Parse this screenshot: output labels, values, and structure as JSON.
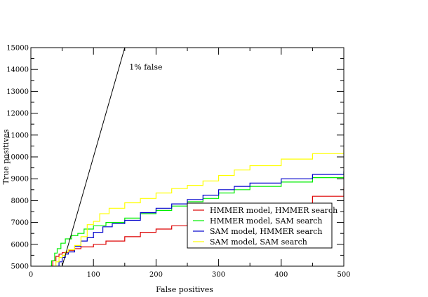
{
  "chart_data": {
    "type": "line",
    "title": "",
    "xlabel": "False positives",
    "ylabel": "True positives",
    "xlim": [
      0,
      500
    ],
    "ylim": [
      5000,
      15000
    ],
    "xticks": [
      0,
      100,
      200,
      300,
      400,
      500
    ],
    "xticks_minor": [
      50,
      150,
      250,
      350,
      450
    ],
    "yticks": [
      5000,
      6000,
      7000,
      8000,
      9000,
      10000,
      11000,
      12000,
      13000,
      14000,
      15000
    ],
    "grid": false,
    "legend_position": "lower-right",
    "annotation": {
      "text": "1% false",
      "x": 155,
      "y": 14050
    },
    "reference_line": {
      "name": "1% false",
      "color": "#000000",
      "x": [
        50,
        150
      ],
      "y": [
        5000,
        15000
      ]
    },
    "series": [
      {
        "name": "HMMER model, HMMER search",
        "color": "#dd0000",
        "x": [
          33,
          35,
          40,
          45,
          50,
          60,
          70,
          80,
          100,
          120,
          150,
          175,
          200,
          225,
          250,
          275,
          300,
          350,
          400,
          450,
          500
        ],
        "y": [
          5000,
          5250,
          5450,
          5550,
          5620,
          5720,
          5800,
          5880,
          6000,
          6150,
          6350,
          6550,
          6700,
          6850,
          7000,
          7150,
          7350,
          7600,
          7850,
          8200,
          8600
        ]
      },
      {
        "name": "HMMER model, SAM search",
        "color": "#00ee00",
        "x": [
          30,
          33,
          38,
          42,
          48,
          55,
          65,
          75,
          85,
          100,
          120,
          150,
          175,
          200,
          225,
          250,
          275,
          300,
          325,
          350,
          400,
          450,
          500
        ],
        "y": [
          5000,
          5250,
          5600,
          5800,
          6050,
          6250,
          6400,
          6500,
          6700,
          6850,
          7000,
          7200,
          7400,
          7550,
          7750,
          7950,
          8100,
          8350,
          8500,
          8650,
          8850,
          9050,
          9300
        ]
      },
      {
        "name": "SAM model, HMMER search",
        "color": "#0000cc",
        "x": [
          40,
          45,
          50,
          55,
          60,
          70,
          80,
          90,
          100,
          115,
          130,
          150,
          175,
          200,
          225,
          250,
          275,
          300,
          325,
          350,
          400,
          450,
          500
        ],
        "y": [
          5000,
          5200,
          5400,
          5550,
          5650,
          5900,
          6150,
          6300,
          6550,
          6800,
          6950,
          7100,
          7450,
          7650,
          7850,
          8050,
          8250,
          8500,
          8650,
          8800,
          9000,
          9200,
          9350
        ]
      },
      {
        "name": "SAM model, SAM search",
        "color": "#ffff00",
        "x": [
          35,
          40,
          45,
          50,
          55,
          60,
          70,
          80,
          90,
          100,
          110,
          125,
          150,
          175,
          200,
          225,
          250,
          275,
          300,
          325,
          350,
          400,
          450,
          500
        ],
        "y": [
          5000,
          5200,
          5400,
          5500,
          5650,
          5750,
          5950,
          6350,
          6900,
          7050,
          7400,
          7650,
          7900,
          8100,
          8350,
          8550,
          8700,
          8900,
          9150,
          9400,
          9600,
          9900,
          10150,
          10350
        ]
      }
    ]
  }
}
